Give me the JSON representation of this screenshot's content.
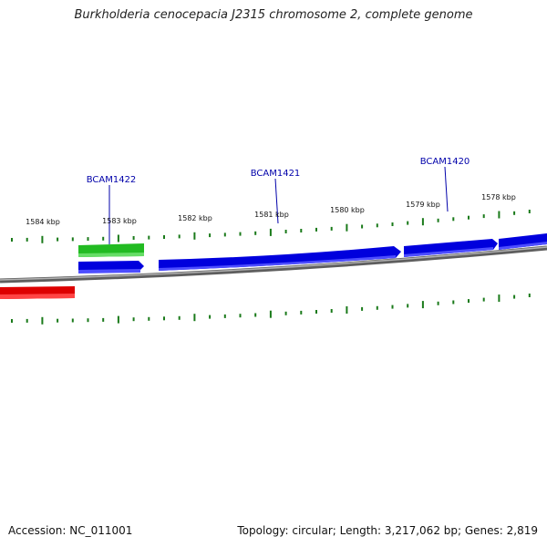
{
  "title": "Burkholderia cenocepacia J2315 chromosome 2, complete genome",
  "footer": {
    "accession_label": "Accession: NC_011001",
    "summary": "Topology: circular; Length: 3,217,062 bp; Genes: 2,819"
  },
  "colors": {
    "backbone": "#7a7a7a",
    "forward_gene": "#0000dd",
    "forward_gene_light": "#4d4dff",
    "reverse_gene": "#dd0000",
    "feature_green": "#22bb22",
    "tick": "#1a7a1a",
    "label_blue": "#0000aa"
  },
  "ruler": {
    "unit": "kbp",
    "ticks": [
      "1584 kbp",
      "1583 kbp",
      "1582 kbp",
      "1581 kbp",
      "1580 kbp",
      "1579 kbp",
      "1578 kbp"
    ]
  },
  "gene_labels": [
    "BCAM1422",
    "BCAM1421",
    "BCAM1420"
  ]
}
